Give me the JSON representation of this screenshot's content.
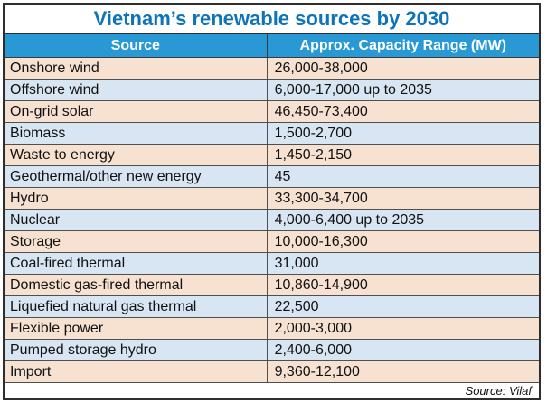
{
  "title": "Vietnam’s renewable sources by 2030",
  "source_note": "Source: Vilaf",
  "colors": {
    "title_blue": "#0d74ba",
    "header_bg": "#2899d5",
    "header_text": "#ffffff",
    "row_peach": "#f7e2d2",
    "row_light_blue": "#d8e6f3",
    "grid_line": "#4f4f4f",
    "outer_border": "#2e2e2e"
  },
  "chart_data": {
    "type": "table",
    "title": "Vietnam’s renewable sources by 2030",
    "columns": [
      "Source",
      "Approx. Capacity Range (MW)"
    ],
    "rows": [
      {
        "source": "Onshore wind",
        "capacity": "26,000-38,000"
      },
      {
        "source": "Offshore wind",
        "capacity": "6,000-17,000 up to 2035"
      },
      {
        "source": "On-grid solar",
        "capacity": "46,450-73,400"
      },
      {
        "source": "Biomass",
        "capacity": "1,500-2,700"
      },
      {
        "source": "Waste to energy",
        "capacity": "1,450-2,150"
      },
      {
        "source": "Geothermal/other new energy",
        "capacity": "45"
      },
      {
        "source": "Hydro",
        "capacity": "33,300-34,700"
      },
      {
        "source": "Nuclear",
        "capacity": "4,000-6,400 up to 2035"
      },
      {
        "source": "Storage",
        "capacity": "10,000-16,300"
      },
      {
        "source": "Coal-fired thermal",
        "capacity": "31,000"
      },
      {
        "source": "Domestic gas-fired thermal",
        "capacity": "10,860-14,900"
      },
      {
        "source": "Liquefied natural gas thermal",
        "capacity": "22,500"
      },
      {
        "source": "Flexible power",
        "capacity": "2,000-3,000"
      },
      {
        "source": "Pumped storage hydro",
        "capacity": "2,400-6,000"
      },
      {
        "source": "Import",
        "capacity": "9,360-12,100"
      }
    ]
  }
}
